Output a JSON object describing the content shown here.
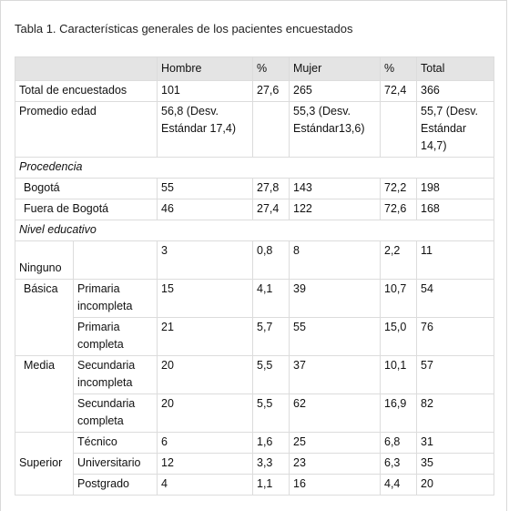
{
  "caption": "Tabla 1. Características generales de los pacientes encuestados",
  "headers": [
    "",
    "Hombre",
    "%",
    "Mujer",
    "%",
    "Total"
  ],
  "rows": {
    "total": {
      "label": "Total de encuestados",
      "hombre": "101",
      "hp": "27,6",
      "mujer": "265",
      "mp": "72,4",
      "total": "366"
    },
    "edad": {
      "label": "Promedio edad",
      "hombre": "56,8 (Desv. Estándar 17,4)",
      "hp": "",
      "mujer": "55,3 (Desv. Estándar13,6)",
      "mp": "",
      "total": "55,7 (Desv. Estándar 14,7)"
    },
    "procedencia": {
      "label": "Procedencia"
    },
    "bogota": {
      "label": "Bogotá",
      "hombre": "55",
      "hp": "27,8",
      "mujer": "143",
      "mp": "72,2",
      "total": "198"
    },
    "fuera": {
      "label": "Fuera de Bogotá",
      "hombre": "46",
      "hp": "27,4",
      "mujer": "122",
      "mp": "72,6",
      "total": "168"
    },
    "nivel": {
      "label": "Nivel educativo"
    },
    "ninguno": {
      "label": "Ninguno",
      "hombre": "3",
      "hp": "0,8",
      "mujer": "8",
      "mp": "2,2",
      "total": "11"
    },
    "basica": {
      "label": "Básica"
    },
    "prim_inc": {
      "sub": "Primaria incompleta",
      "hombre": "15",
      "hp": "4,1",
      "mujer": "39",
      "mp": "10,7",
      "total": "54"
    },
    "prim_comp": {
      "sub": "Primaria completa",
      "hombre": "21",
      "hp": "5,7",
      "mujer": "55",
      "mp": "15,0",
      "total": "76"
    },
    "media": {
      "label": "Media"
    },
    "sec_inc": {
      "sub": "Secundaria incompleta",
      "hombre": "20",
      "hp": "5,5",
      "mujer": "37",
      "mp": "10,1",
      "total": "57"
    },
    "sec_comp": {
      "sub": "Secundaria completa",
      "hombre": "20",
      "hp": "5,5",
      "mujer": "62",
      "mp": "16,9",
      "total": "82"
    },
    "superior": {
      "label": "Superior"
    },
    "tecnico": {
      "sub": "Técnico",
      "hombre": "6",
      "hp": "1,6",
      "mujer": "25",
      "mp": "6,8",
      "total": "31"
    },
    "univ": {
      "sub": "Universitario",
      "hombre": "12",
      "hp": "3,3",
      "mujer": "23",
      "mp": "6,3",
      "total": "35"
    },
    "posgrado": {
      "sub": "Postgrado",
      "hombre": "4",
      "hp": "1,1",
      "mujer": "16",
      "mp": "4,4",
      "total": "20"
    }
  }
}
